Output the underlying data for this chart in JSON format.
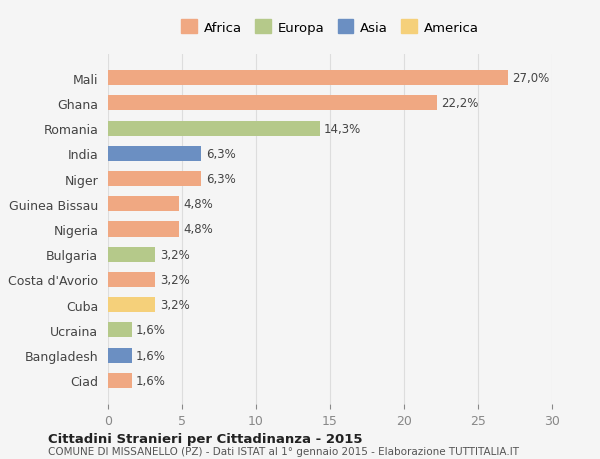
{
  "countries": [
    "Mali",
    "Ghana",
    "Romania",
    "India",
    "Niger",
    "Guinea Bissau",
    "Nigeria",
    "Bulgaria",
    "Costa d'Avorio",
    "Cuba",
    "Ucraina",
    "Bangladesh",
    "Ciad"
  ],
  "values": [
    27.0,
    22.2,
    14.3,
    6.3,
    6.3,
    4.8,
    4.8,
    3.2,
    3.2,
    3.2,
    1.6,
    1.6,
    1.6
  ],
  "labels": [
    "27,0%",
    "22,2%",
    "14,3%",
    "6,3%",
    "6,3%",
    "4,8%",
    "4,8%",
    "3,2%",
    "3,2%",
    "3,2%",
    "1,6%",
    "1,6%",
    "1,6%"
  ],
  "continents": [
    "Africa",
    "Africa",
    "Europa",
    "Asia",
    "Africa",
    "Africa",
    "Africa",
    "Europa",
    "Africa",
    "America",
    "Europa",
    "Asia",
    "Africa"
  ],
  "colors": {
    "Africa": "#F0A882",
    "Europa": "#B5C98A",
    "Asia": "#6B8FC2",
    "America": "#F5D07A"
  },
  "background_color": "#f5f5f5",
  "title": "Cittadini Stranieri per Cittadinanza - 2015",
  "subtitle": "COMUNE DI MISSANELLO (PZ) - Dati ISTAT al 1° gennaio 2015 - Elaborazione TUTTITALIA.IT",
  "xlim": [
    0,
    30
  ],
  "xticks": [
    0,
    5,
    10,
    15,
    20,
    25,
    30
  ],
  "legend_order": [
    "Africa",
    "Europa",
    "Asia",
    "America"
  ]
}
